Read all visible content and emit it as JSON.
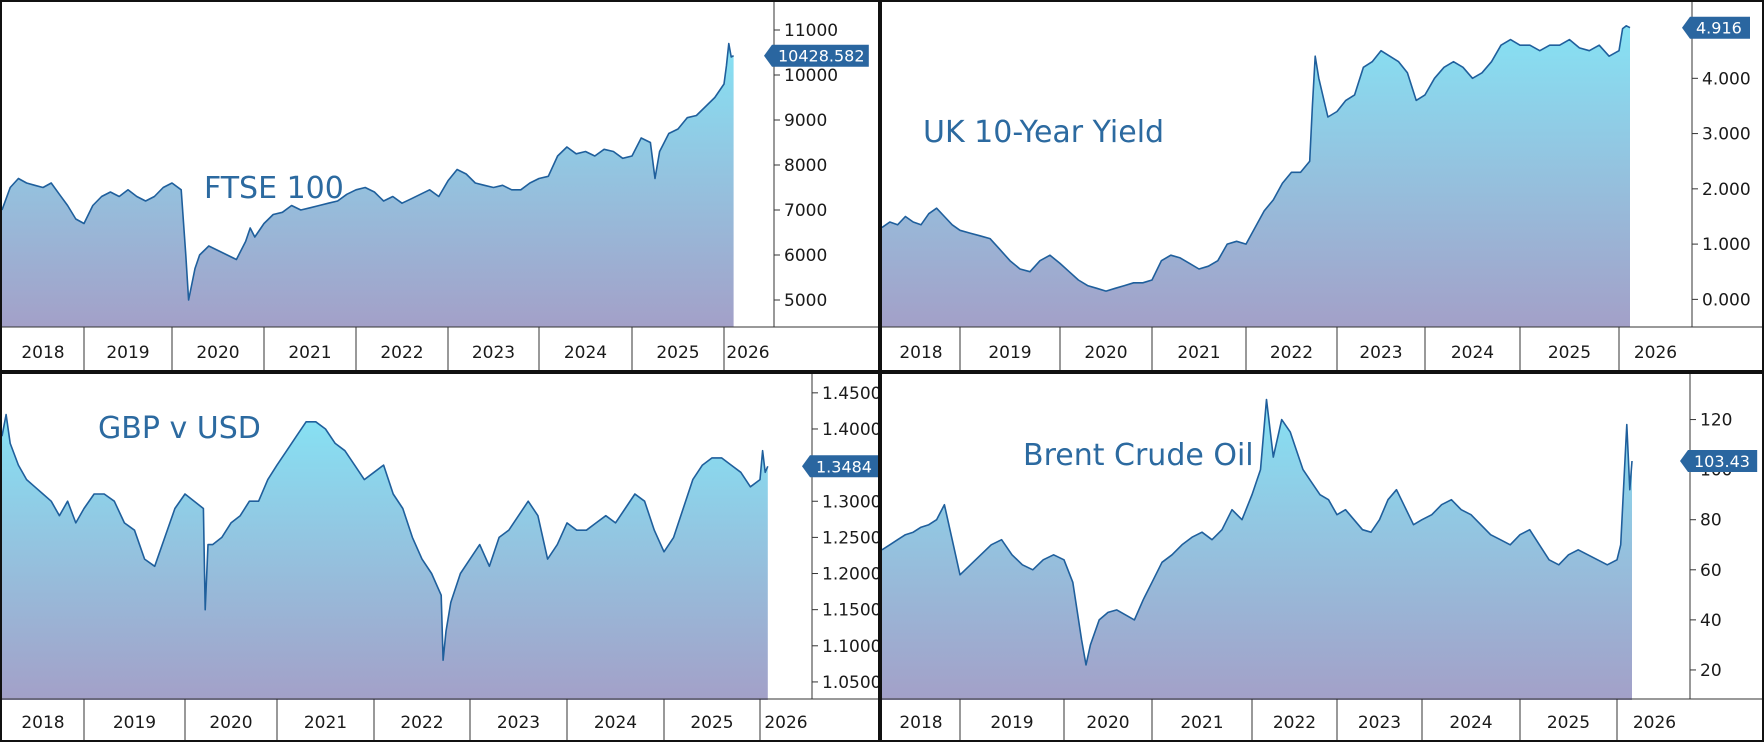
{
  "colors": {
    "line": "#1f5f9c",
    "fill_top": "#86e2f4",
    "fill_bottom": "#a3a0c8",
    "badge": "#2a66a0"
  },
  "chart_data": [
    {
      "type": "area",
      "title": "FTSE 100",
      "x_labels": [
        "2018",
        "2019",
        "2020",
        "2021",
        "2022",
        "2023",
        "2024",
        "2025",
        "2026"
      ],
      "yticks": [
        "5000",
        "6000",
        "7000",
        "8000",
        "9000",
        "10000",
        "11000"
      ],
      "ylim": [
        4400,
        11400
      ],
      "last_value": "10428.582",
      "x": [
        2018.0,
        2018.1,
        2018.2,
        2018.3,
        2018.4,
        2018.5,
        2018.6,
        2018.7,
        2018.8,
        2018.9,
        2019.0,
        2019.1,
        2019.2,
        2019.3,
        2019.4,
        2019.5,
        2019.6,
        2019.7,
        2019.8,
        2019.9,
        2020.0,
        2020.1,
        2020.15,
        2020.18,
        2020.25,
        2020.3,
        2020.4,
        2020.5,
        2020.6,
        2020.7,
        2020.8,
        2020.85,
        2020.9,
        2021.0,
        2021.1,
        2021.2,
        2021.3,
        2021.4,
        2021.5,
        2021.6,
        2021.7,
        2021.8,
        2021.9,
        2022.0,
        2022.1,
        2022.2,
        2022.3,
        2022.4,
        2022.5,
        2022.6,
        2022.7,
        2022.8,
        2022.9,
        2023.0,
        2023.1,
        2023.2,
        2023.3,
        2023.4,
        2023.5,
        2023.6,
        2023.7,
        2023.8,
        2023.9,
        2024.0,
        2024.1,
        2024.2,
        2024.3,
        2024.4,
        2024.5,
        2024.6,
        2024.7,
        2024.8,
        2024.9,
        2025.0,
        2025.1,
        2025.2,
        2025.25,
        2025.3,
        2025.35,
        2025.4,
        2025.5,
        2025.6,
        2025.7,
        2025.8,
        2025.9,
        2026.0,
        2026.05,
        2026.1,
        2026.15,
        2026.2
      ],
      "y": [
        7000,
        7500,
        7700,
        7600,
        7550,
        7500,
        7600,
        7350,
        7100,
        6800,
        6700,
        7100,
        7300,
        7400,
        7300,
        7450,
        7300,
        7200,
        7300,
        7500,
        7600,
        7450,
        6000,
        5000,
        5700,
        6000,
        6200,
        6100,
        6000,
        5900,
        6300,
        6600,
        6400,
        6700,
        6900,
        6950,
        7100,
        7000,
        7050,
        7100,
        7150,
        7200,
        7350,
        7450,
        7500,
        7400,
        7200,
        7300,
        7150,
        7250,
        7350,
        7450,
        7300,
        7650,
        7900,
        7800,
        7600,
        7550,
        7500,
        7550,
        7450,
        7450,
        7600,
        7700,
        7750,
        8200,
        8400,
        8250,
        8300,
        8200,
        8350,
        8300,
        8150,
        8200,
        8600,
        8500,
        7700,
        8300,
        8500,
        8700,
        8800,
        9050,
        9100,
        9300,
        9500,
        9800,
        10200,
        10700,
        10400,
        10428.582
      ],
      "xlabel": "",
      "ylabel": ""
    },
    {
      "type": "area",
      "title": "UK 10-Year Yield",
      "x_labels": [
        "2018",
        "2019",
        "2020",
        "2021",
        "2022",
        "2023",
        "2024",
        "2025",
        "2026"
      ],
      "yticks": [
        "0.000",
        "1.000",
        "2.000",
        "3.000",
        "4.000"
      ],
      "ylim": [
        -0.5,
        5.2
      ],
      "last_value": "4.916",
      "x": [
        2018.0,
        2018.1,
        2018.2,
        2018.3,
        2018.4,
        2018.5,
        2018.6,
        2018.7,
        2018.8,
        2018.9,
        2019.0,
        2019.1,
        2019.2,
        2019.3,
        2019.4,
        2019.5,
        2019.6,
        2019.7,
        2019.8,
        2019.9,
        2020.0,
        2020.1,
        2020.2,
        2020.3,
        2020.4,
        2020.5,
        2020.6,
        2020.7,
        2020.8,
        2020.9,
        2021.0,
        2021.1,
        2021.2,
        2021.3,
        2021.4,
        2021.5,
        2021.6,
        2021.7,
        2021.8,
        2021.9,
        2022.0,
        2022.1,
        2022.2,
        2022.3,
        2022.4,
        2022.5,
        2022.6,
        2022.7,
        2022.73,
        2022.76,
        2022.8,
        2022.9,
        2023.0,
        2023.1,
        2023.2,
        2023.3,
        2023.4,
        2023.5,
        2023.6,
        2023.7,
        2023.8,
        2023.9,
        2024.0,
        2024.1,
        2024.2,
        2024.3,
        2024.4,
        2024.5,
        2024.6,
        2024.7,
        2024.8,
        2024.9,
        2025.0,
        2025.1,
        2025.2,
        2025.3,
        2025.4,
        2025.5,
        2025.6,
        2025.7,
        2025.8,
        2025.9,
        2026.0,
        2026.05,
        2026.1,
        2026.15
      ],
      "y": [
        1.3,
        1.4,
        1.35,
        1.5,
        1.4,
        1.35,
        1.55,
        1.65,
        1.5,
        1.35,
        1.25,
        1.2,
        1.15,
        1.1,
        0.9,
        0.7,
        0.55,
        0.5,
        0.7,
        0.8,
        0.65,
        0.5,
        0.35,
        0.25,
        0.2,
        0.15,
        0.2,
        0.25,
        0.3,
        0.3,
        0.35,
        0.7,
        0.8,
        0.75,
        0.65,
        0.55,
        0.6,
        0.7,
        1.0,
        1.05,
        1.0,
        1.3,
        1.6,
        1.8,
        2.1,
        2.3,
        2.3,
        2.5,
        3.5,
        4.4,
        4.0,
        3.3,
        3.4,
        3.6,
        3.7,
        4.2,
        4.3,
        4.5,
        4.4,
        4.3,
        4.1,
        3.6,
        3.7,
        4.0,
        4.2,
        4.3,
        4.2,
        4.0,
        4.1,
        4.3,
        4.6,
        4.7,
        4.6,
        4.6,
        4.5,
        4.6,
        4.6,
        4.7,
        4.55,
        4.5,
        4.6,
        4.4,
        4.5,
        4.9,
        4.95,
        4.916
      ],
      "xlabel": "",
      "ylabel": ""
    },
    {
      "type": "area",
      "title": "GBP v USD",
      "x_labels": [
        "2018",
        "2019",
        "2020",
        "2021",
        "2022",
        "2023",
        "2024",
        "2025",
        "2026"
      ],
      "yticks": [
        "1.0500",
        "1.1000",
        "1.1500",
        "1.2000",
        "1.2500",
        "1.3000",
        "1.3500",
        "1.4000",
        "1.4500"
      ],
      "ylim": [
        1.025,
        1.465
      ],
      "last_value": "1.3484",
      "x": [
        2018.0,
        2018.05,
        2018.1,
        2018.2,
        2018.3,
        2018.4,
        2018.5,
        2018.6,
        2018.7,
        2018.8,
        2018.9,
        2019.0,
        2019.1,
        2019.2,
        2019.3,
        2019.4,
        2019.5,
        2019.6,
        2019.7,
        2019.8,
        2019.9,
        2020.0,
        2020.1,
        2020.2,
        2020.22,
        2020.25,
        2020.3,
        2020.4,
        2020.5,
        2020.6,
        2020.7,
        2020.8,
        2020.9,
        2021.0,
        2021.1,
        2021.2,
        2021.3,
        2021.4,
        2021.5,
        2021.6,
        2021.7,
        2021.8,
        2021.9,
        2022.0,
        2022.1,
        2022.2,
        2022.3,
        2022.4,
        2022.5,
        2022.6,
        2022.7,
        2022.72,
        2022.75,
        2022.8,
        2022.9,
        2023.0,
        2023.1,
        2023.2,
        2023.3,
        2023.4,
        2023.5,
        2023.6,
        2023.7,
        2023.8,
        2023.9,
        2024.0,
        2024.1,
        2024.2,
        2024.3,
        2024.4,
        2024.5,
        2024.6,
        2024.7,
        2024.8,
        2024.9,
        2025.0,
        2025.1,
        2025.2,
        2025.3,
        2025.4,
        2025.5,
        2025.6,
        2025.7,
        2025.8,
        2025.9,
        2026.0,
        2026.05,
        2026.1,
        2026.15
      ],
      "y": [
        1.39,
        1.42,
        1.38,
        1.35,
        1.33,
        1.32,
        1.31,
        1.3,
        1.28,
        1.3,
        1.27,
        1.29,
        1.31,
        1.31,
        1.3,
        1.27,
        1.26,
        1.22,
        1.21,
        1.25,
        1.29,
        1.31,
        1.3,
        1.29,
        1.15,
        1.24,
        1.24,
        1.25,
        1.27,
        1.28,
        1.3,
        1.3,
        1.33,
        1.35,
        1.37,
        1.39,
        1.41,
        1.41,
        1.4,
        1.38,
        1.37,
        1.35,
        1.33,
        1.34,
        1.35,
        1.31,
        1.29,
        1.25,
        1.22,
        1.2,
        1.17,
        1.08,
        1.12,
        1.16,
        1.2,
        1.22,
        1.24,
        1.21,
        1.25,
        1.26,
        1.28,
        1.3,
        1.28,
        1.22,
        1.24,
        1.27,
        1.26,
        1.26,
        1.27,
        1.28,
        1.27,
        1.29,
        1.31,
        1.3,
        1.26,
        1.23,
        1.25,
        1.29,
        1.33,
        1.35,
        1.36,
        1.36,
        1.35,
        1.34,
        1.32,
        1.33,
        1.37,
        1.34,
        1.3484
      ],
      "xlabel": "",
      "ylabel": ""
    },
    {
      "type": "area",
      "title": "Brent Crude Oil",
      "x_labels": [
        "2018",
        "2019",
        "2020",
        "2021",
        "2022",
        "2023",
        "2024",
        "2025",
        "2026"
      ],
      "yticks": [
        "20",
        "40",
        "60",
        "80",
        "100",
        "120"
      ],
      "ylim": [
        8,
        135
      ],
      "last_value": "103.43",
      "x": [
        2018.0,
        2018.1,
        2018.2,
        2018.3,
        2018.4,
        2018.5,
        2018.6,
        2018.7,
        2018.8,
        2018.9,
        2019.0,
        2019.1,
        2019.2,
        2019.3,
        2019.4,
        2019.5,
        2019.6,
        2019.7,
        2019.8,
        2019.9,
        2020.0,
        2020.1,
        2020.2,
        2020.25,
        2020.3,
        2020.4,
        2020.5,
        2020.6,
        2020.7,
        2020.8,
        2020.9,
        2021.0,
        2021.1,
        2021.2,
        2021.3,
        2021.4,
        2021.5,
        2021.6,
        2021.7,
        2021.8,
        2021.9,
        2022.0,
        2022.1,
        2022.17,
        2022.25,
        2022.35,
        2022.45,
        2022.5,
        2022.6,
        2022.7,
        2022.8,
        2022.9,
        2023.0,
        2023.1,
        2023.2,
        2023.3,
        2023.4,
        2023.5,
        2023.6,
        2023.7,
        2023.8,
        2023.9,
        2024.0,
        2024.1,
        2024.2,
        2024.3,
        2024.4,
        2024.5,
        2024.6,
        2024.7,
        2024.8,
        2024.9,
        2025.0,
        2025.1,
        2025.2,
        2025.3,
        2025.4,
        2025.5,
        2025.6,
        2025.7,
        2025.8,
        2025.9,
        2026.0,
        2026.05,
        2026.1,
        2026.13,
        2026.17,
        2026.2
      ],
      "y": [
        68,
        70,
        72,
        74,
        75,
        77,
        78,
        80,
        86,
        72,
        58,
        62,
        66,
        70,
        72,
        66,
        62,
        60,
        64,
        66,
        64,
        55,
        32,
        22,
        30,
        40,
        43,
        44,
        42,
        40,
        48,
        55,
        63,
        66,
        70,
        73,
        75,
        72,
        76,
        84,
        80,
        90,
        100,
        128,
        105,
        120,
        115,
        110,
        100,
        95,
        90,
        88,
        82,
        84,
        80,
        76,
        75,
        80,
        88,
        92,
        85,
        78,
        80,
        82,
        86,
        88,
        84,
        82,
        78,
        74,
        72,
        70,
        74,
        76,
        70,
        64,
        62,
        66,
        68,
        66,
        64,
        62,
        64,
        70,
        100,
        118,
        92,
        103.43
      ],
      "xlabel": "",
      "ylabel": ""
    }
  ]
}
